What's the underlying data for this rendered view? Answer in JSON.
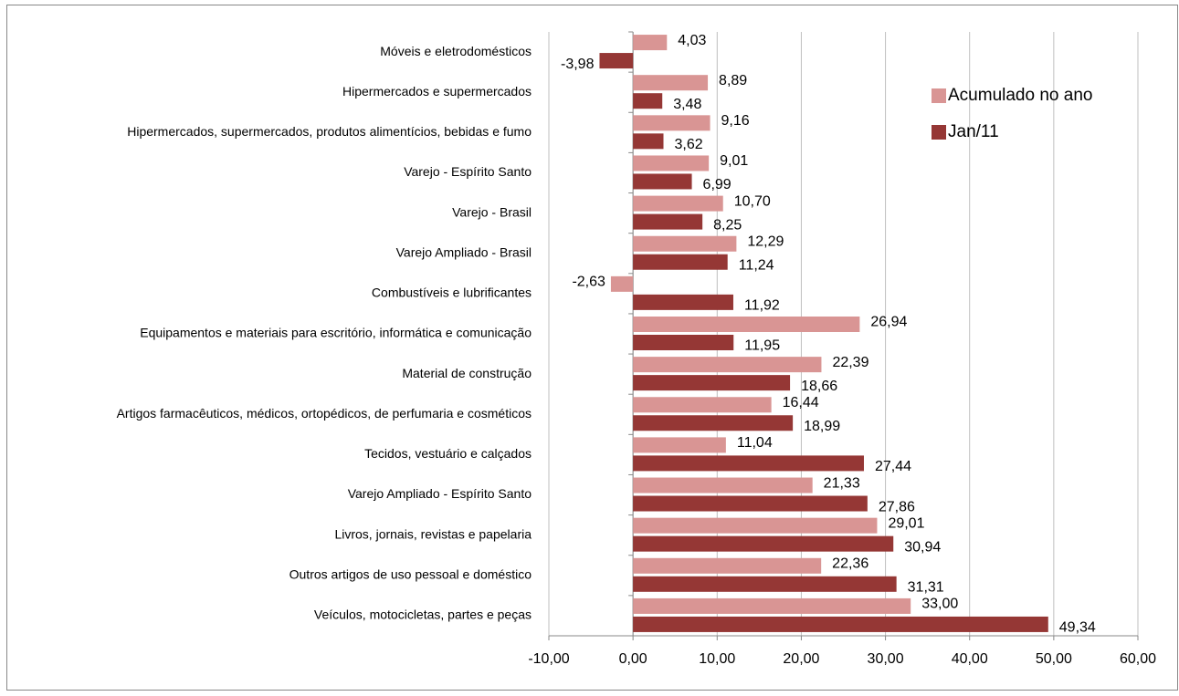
{
  "chart_data": {
    "type": "hbar",
    "categories": [
      "Móveis e eletrodomésticos",
      "Hipermercados e supermercados",
      "Hipermercados, supermercados, produtos alimentícios, bebidas e fumo",
      "Varejo - Espírito Santo",
      "Varejo - Brasil",
      "Varejo Ampliado - Brasil",
      "Combustíveis e lubrificantes",
      "Equipamentos e materiais para escritório, informática e comunicação",
      "Material de construção",
      "Artigos farmacêuticos, médicos, ortopédicos, de perfumaria e cosméticos",
      "Tecidos, vestuário e calçados",
      "Varejo Ampliado - Espírito Santo",
      "Livros, jornais, revistas e papelaria",
      "Outros artigos de uso pessoal e doméstico",
      "Veículos, motocicletas, partes e peças"
    ],
    "series": [
      {
        "name": "Acumulado no ano",
        "color": "#d99594",
        "values": [
          4.03,
          8.89,
          9.16,
          9.01,
          10.7,
          12.29,
          -2.63,
          26.94,
          22.39,
          16.44,
          11.04,
          21.33,
          29.01,
          22.36,
          33.0
        ],
        "value_labels": [
          "4,03",
          "8,89",
          "9,16",
          "9,01",
          "10,70",
          "12,29",
          "-2,63",
          "26,94",
          "22,39",
          "16,44",
          "11,04",
          "21,33",
          "29,01",
          "22,36",
          "33,00"
        ]
      },
      {
        "name": "Jan/11",
        "color": "#953735",
        "values": [
          -3.98,
          3.48,
          3.62,
          6.99,
          8.25,
          11.24,
          11.92,
          11.95,
          18.66,
          18.99,
          27.44,
          27.86,
          30.94,
          31.31,
          49.34
        ],
        "value_labels": [
          "-3,98",
          "3,48",
          "3,62",
          "6,99",
          "8,25",
          "11,24",
          "11,92",
          "11,95",
          "18,66",
          "18,99",
          "27,44",
          "27,86",
          "30,94",
          "31,31",
          "49,34"
        ]
      }
    ],
    "xlim": [
      -10,
      60
    ],
    "xticks": [
      {
        "value": -10,
        "label": "-10,00"
      },
      {
        "value": 0,
        "label": "0,00"
      },
      {
        "value": 10,
        "label": "10,00"
      },
      {
        "value": 20,
        "label": "20,00"
      },
      {
        "value": 30,
        "label": "30,00"
      },
      {
        "value": 40,
        "label": "40,00"
      },
      {
        "value": 50,
        "label": "50,00"
      },
      {
        "value": 60,
        "label": "60,00"
      }
    ],
    "grid": true,
    "legend": "right"
  }
}
